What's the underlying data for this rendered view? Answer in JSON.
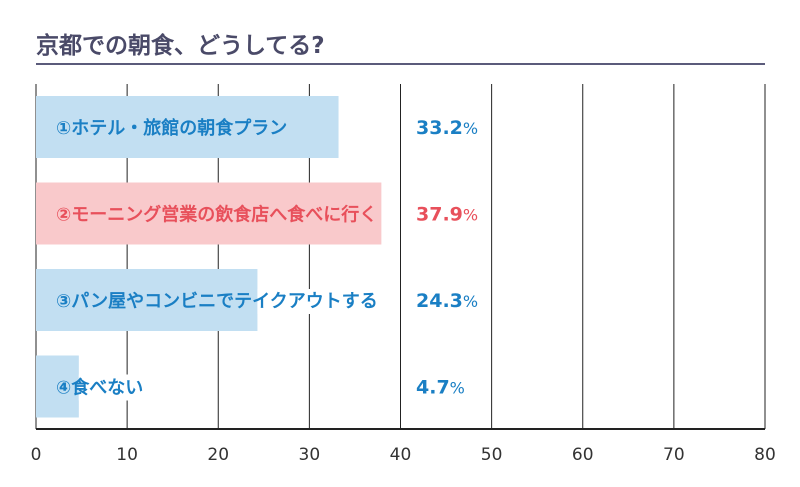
{
  "chart_data": {
    "type": "bar",
    "orientation": "horizontal",
    "title": "京都での朝食、どうしてる?",
    "categories": [
      "①ホテル・旅館の朝食プラン",
      "②モーニング営業の飲食店へ食べに行く",
      "③パン屋やコンビニでテイクアウトする",
      "④食べない"
    ],
    "values": [
      33.2,
      37.9,
      24.3,
      4.7
    ],
    "value_labels": [
      "33.2",
      "37.9",
      "24.3",
      "4.7"
    ],
    "unit": "%",
    "xlim": [
      0,
      80
    ],
    "xticks": [
      0,
      10,
      20,
      30,
      40,
      50,
      60,
      70,
      80
    ],
    "grid": true,
    "xlabel": "",
    "ylabel": "",
    "colors": {
      "bar_blue": "#c2dff2",
      "bar_pink": "#f9c9cb",
      "text_blue": "#1a7fc4",
      "text_red": "#e8505b",
      "title": "#4a4a68",
      "rule": "#5b5b7b",
      "grid": "#222222"
    },
    "highlight_index": 1
  }
}
